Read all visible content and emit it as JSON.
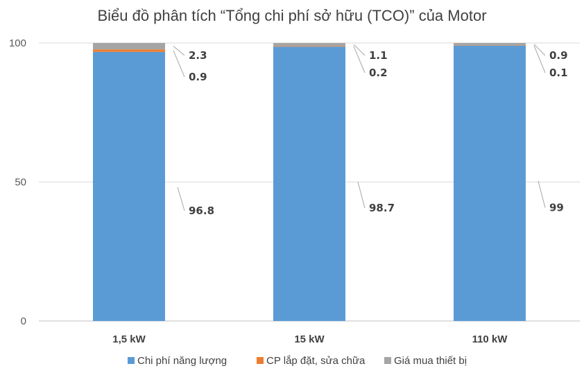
{
  "chart_data": {
    "type": "bar",
    "stacked": true,
    "title": "Biểu đồ phân tích “Tổng chi phí sở hữu (TCO)” của Motor",
    "categories": [
      "1,5 kW",
      "15 kW",
      "110 kW"
    ],
    "ylim": [
      0,
      100
    ],
    "yticks": [
      "0",
      "50",
      "100"
    ],
    "series": [
      {
        "name": "Chi phí năng lượng",
        "color": "#5B9BD5",
        "values": [
          96.8,
          98.7,
          99
        ],
        "labels": [
          "96.8",
          "98.7",
          "99"
        ]
      },
      {
        "name": "CP lắp đặt, sửa chữa",
        "color": "#ED7D31",
        "values": [
          0.9,
          0.2,
          0.1
        ],
        "labels": [
          "0.9",
          "0.2",
          "0.1"
        ]
      },
      {
        "name": "Giá mua thiết bị",
        "color": "#A5A5A5",
        "values": [
          2.3,
          1.1,
          0.9
        ],
        "labels": [
          "2.3",
          "1.1",
          "0.9"
        ]
      }
    ],
    "grid": true,
    "legend": "bottom"
  }
}
